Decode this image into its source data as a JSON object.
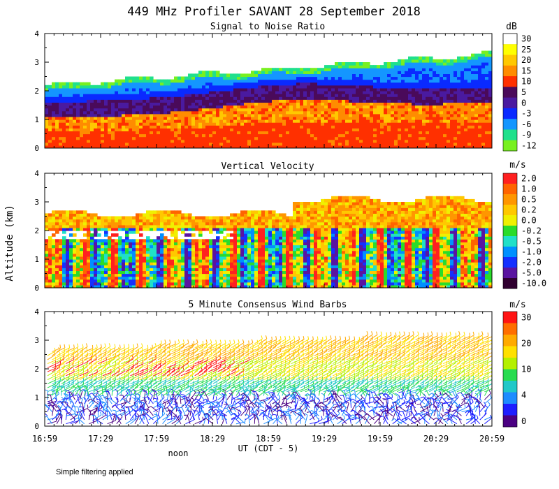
{
  "title": "449 MHz Profiler SAVANT 28 September 2018",
  "shared_axis": {
    "ylabel": "Altitude (km)",
    "xlabel": "UT (CDT - 5)",
    "xticks": [
      "16:59",
      "17:29",
      "17:59",
      "18:29",
      "18:59",
      "19:29",
      "19:59",
      "20:29",
      "20:59"
    ],
    "noon_label": "noon"
  },
  "footnote": "Simple filtering applied",
  "chart_data": [
    {
      "type": "heatmap",
      "title": "Signal to Noise Ratio",
      "xlabel": "UT (CDT - 5)",
      "ylabel": "Altitude (km)",
      "xlim": [
        "16:59",
        "20:59"
      ],
      "ylim": [
        0,
        4
      ],
      "yticks": [
        "0",
        "1",
        "2",
        "3",
        "4"
      ],
      "colorbar": {
        "unit": "dB",
        "labels": [
          "30",
          "25",
          "20",
          "15",
          "10",
          "5",
          "0",
          "-3",
          "-6",
          "-9",
          "-12"
        ],
        "colors": [
          "#ffffff",
          "#ffff00",
          "#ffc800",
          "#ff8c00",
          "#ff3000",
          "#4a0a5a",
          "#4a1aa0",
          "#0a2aff",
          "#1496ff",
          "#20e08c",
          "#78f020"
        ]
      },
      "data_top_km": {
        "start": 2.2,
        "end": 3.3
      },
      "layers": [
        "boundary-layer high SNR 0-1 km (10 to 15 dB)",
        "dark minimum 1-2 km (0 to 5 dB)",
        "low SNR upper layer (-12 to -3 dB)"
      ]
    },
    {
      "type": "heatmap",
      "title": "Vertical Velocity",
      "xlabel": "UT (CDT - 5)",
      "ylabel": "Altitude (km)",
      "xlim": [
        "16:59",
        "20:59"
      ],
      "ylim": [
        0,
        4
      ],
      "yticks": [
        "0",
        "1",
        "2",
        "3",
        "4"
      ],
      "colorbar": {
        "unit": "m/s",
        "labels": [
          "2.0",
          "1.0",
          "0.5",
          "0.2",
          "0.0",
          "-0.2",
          "-0.5",
          "-1.0",
          "-2.0",
          "-5.0",
          "-10.0"
        ],
        "colors": [
          "#ff2020",
          "#ff6400",
          "#ff9600",
          "#ffc800",
          "#f0f000",
          "#2adc2a",
          "#20e0c8",
          "#0090ff",
          "#1430ff",
          "#5a14a0",
          "#300030"
        ]
      },
      "data_top_km": {
        "start": 2.6,
        "end": 3.1
      }
    },
    {
      "type": "barbs",
      "title": "5 Minute Consensus Wind Barbs",
      "xlabel": "UT (CDT - 5)",
      "ylabel": "Altitude (km)",
      "xlim": [
        "16:59",
        "20:59"
      ],
      "ylim": [
        0,
        4
      ],
      "yticks": [
        "0",
        "1",
        "2",
        "3",
        "4"
      ],
      "colorbar": {
        "unit": "m/s",
        "labels": [
          "30",
          "20",
          "10",
          "4",
          "0"
        ],
        "colors": [
          "#ff1414",
          "#ff6e00",
          "#ffaa00",
          "#ffe000",
          "#b4f000",
          "#28dc50",
          "#20c8c8",
          "#1e8cff",
          "#1e1eff",
          "#4b0082"
        ]
      },
      "data_top_km": {
        "start": 2.6,
        "end": 3.2
      }
    }
  ]
}
